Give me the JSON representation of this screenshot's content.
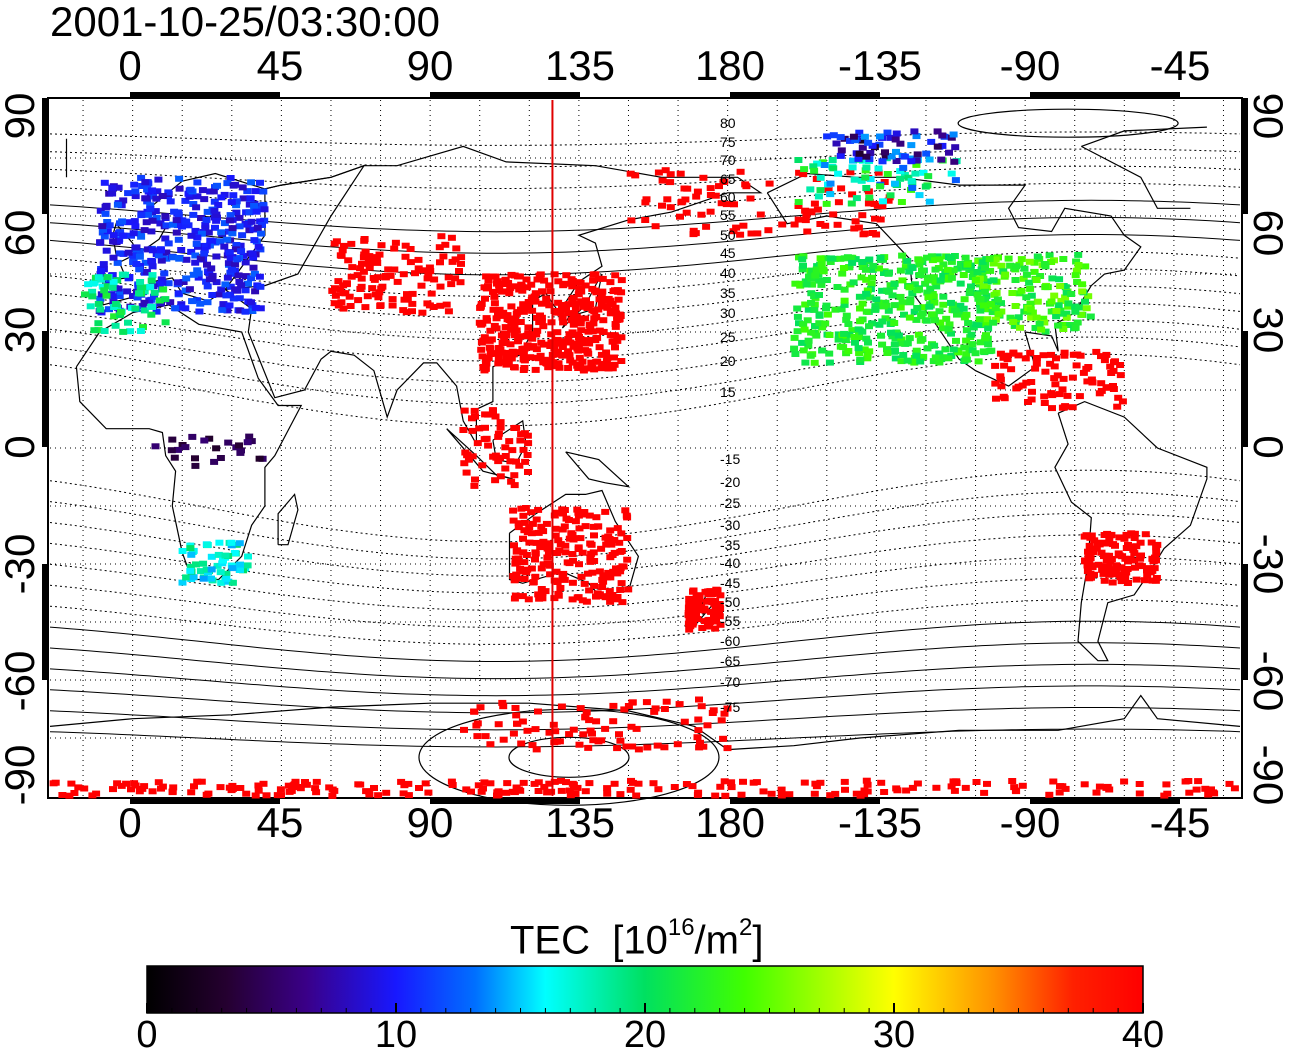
{
  "timestamp": "2001-10-25/03:30:00",
  "lon_ticks": [
    "0",
    "45",
    "90",
    "135",
    "180",
    "-135",
    "-90",
    "-45"
  ],
  "lat_ticks": [
    "90",
    "60",
    "30",
    "0",
    "-30",
    "-60",
    "-90"
  ],
  "contour_labels": [
    "80",
    "75",
    "70",
    "65",
    "60",
    "55",
    "50",
    "45",
    "40",
    "35",
    "30",
    "25",
    "20",
    "15",
    "-15",
    "-20",
    "-25",
    "-30",
    "-35",
    "-40",
    "-45",
    "-50",
    "-55",
    "-60",
    "-65",
    "-70",
    "-75"
  ],
  "colorbar": {
    "title": "TEC",
    "unit_base": "[10",
    "unit_exp": "16",
    "unit_mid": "/m",
    "unit_exp2": "2",
    "unit_end": "]",
    "ticks": [
      "0",
      "10",
      "20",
      "30",
      "40"
    ],
    "min": 0,
    "max": 40
  },
  "map_settings": {
    "projection": "equirectangular",
    "lon_range_display": [
      -25,
      335
    ],
    "lat_range": [
      -90,
      90
    ],
    "grid": "dotted 15 degrees",
    "sun_line_lon": 127,
    "sun_line_color": "#e00000"
  }
}
